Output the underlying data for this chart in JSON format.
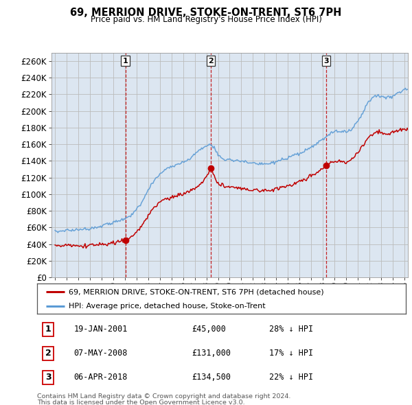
{
  "title": "69, MERRION DRIVE, STOKE-ON-TRENT, ST6 7PH",
  "subtitle": "Price paid vs. HM Land Registry's House Price Index (HPI)",
  "ylim": [
    0,
    270000
  ],
  "yticks": [
    0,
    20000,
    40000,
    60000,
    80000,
    100000,
    120000,
    140000,
    160000,
    180000,
    200000,
    220000,
    240000,
    260000
  ],
  "ytick_labels": [
    "£0",
    "£20K",
    "£40K",
    "£60K",
    "£80K",
    "£100K",
    "£120K",
    "£140K",
    "£160K",
    "£180K",
    "£200K",
    "£220K",
    "£240K",
    "£260K"
  ],
  "hpi_color": "#5b9bd5",
  "price_color": "#c00000",
  "vline_color": "#c00000",
  "grid_color": "#bbbbbb",
  "chart_bg": "#dce6f1",
  "fig_bg": "#ffffff",
  "legend_entries": [
    "69, MERRION DRIVE, STOKE-ON-TRENT, ST6 7PH (detached house)",
    "HPI: Average price, detached house, Stoke-on-Trent"
  ],
  "transactions": [
    {
      "num": "1",
      "date": "19-JAN-2001",
      "price": "£45,000",
      "pct": "28% ↓ HPI",
      "x_year": 2001.05,
      "y_price": 45000
    },
    {
      "num": "2",
      "date": "07-MAY-2008",
      "price": "£131,000",
      "pct": "17% ↓ HPI",
      "x_year": 2008.37,
      "y_price": 131000
    },
    {
      "num": "3",
      "date": "06-APR-2018",
      "price": "£134,500",
      "pct": "22% ↓ HPI",
      "x_year": 2018.27,
      "y_price": 134500
    }
  ],
  "footer_line1": "Contains HM Land Registry data © Crown copyright and database right 2024.",
  "footer_line2": "This data is licensed under the Open Government Licence v3.0.",
  "xmin": 1994.7,
  "xmax": 2025.3,
  "xticks": [
    1995,
    1996,
    1997,
    1998,
    1999,
    2000,
    2001,
    2002,
    2003,
    2004,
    2005,
    2006,
    2007,
    2008,
    2009,
    2010,
    2011,
    2012,
    2013,
    2014,
    2015,
    2016,
    2017,
    2018,
    2019,
    2020,
    2021,
    2022,
    2023,
    2024,
    2025
  ]
}
